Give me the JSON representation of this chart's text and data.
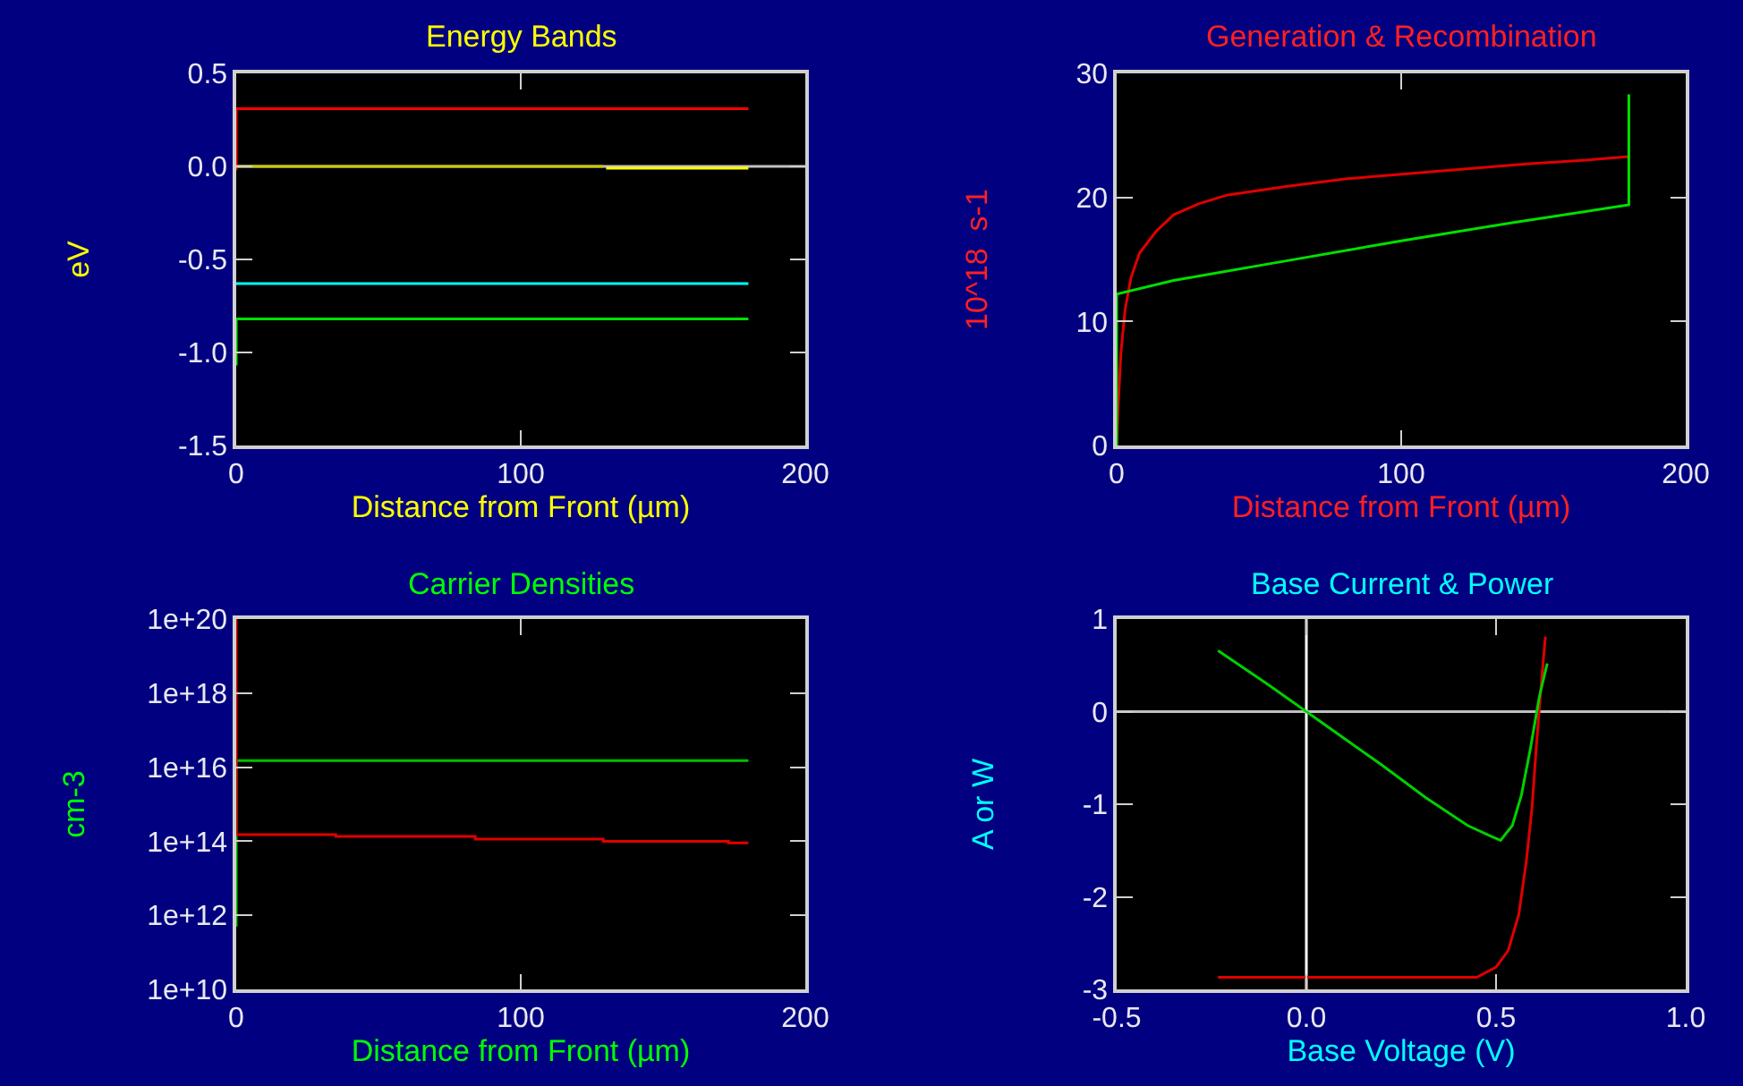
{
  "chart_data": [
    {
      "type": "line",
      "title": "Energy Bands",
      "xlabel": "Distance from Front (µm)",
      "ylabel": "eV",
      "xlim": [
        0,
        200
      ],
      "ylim": [
        -1.5,
        0.5
      ],
      "xticks": [
        0,
        100,
        200
      ],
      "yticks": [
        0.5,
        {
          "value": 0,
          "label": "0.0"
        },
        -0.5,
        {
          "value": -1,
          "label": "-1.0"
        },
        -1.5
      ],
      "grid": false,
      "ref_lines": [
        {
          "axis": "y",
          "value": 0,
          "color": "#c0c0c0"
        }
      ],
      "series": [
        {
          "color": "#ff0000",
          "x": [
            0,
            0,
            180
          ],
          "values": [
            -0.02,
            0.31,
            0.31
          ]
        },
        {
          "color": "#c8c800",
          "x": [
            0,
            129
          ],
          "values": [
            0,
            0
          ]
        },
        {
          "color": "#ffff00",
          "x": [
            130,
            180
          ],
          "values": [
            -0.01,
            -0.01
          ]
        },
        {
          "color": "#00ffff",
          "x": [
            0,
            180
          ],
          "values": [
            -0.63,
            -0.63
          ]
        },
        {
          "color": "#00e000",
          "x": [
            0,
            0,
            180
          ],
          "values": [
            -1.07,
            -0.82,
            -0.82
          ]
        }
      ]
    },
    {
      "type": "line",
      "title": "Generation & Recombination",
      "xlabel": "Distance from Front (µm)",
      "ylabel": "10^18  s-1",
      "xlim": [
        0,
        200
      ],
      "ylim": [
        0,
        30
      ],
      "xticks": [
        0,
        100,
        200
      ],
      "yticks": [
        0,
        10,
        20,
        30
      ],
      "grid": false,
      "series": [
        {
          "color": "#e00000",
          "x": [
            0,
            0.5,
            1.5,
            3,
            5,
            8,
            14,
            20,
            29,
            39,
            60,
            81,
            102,
            123,
            144,
            165,
            180
          ],
          "values": [
            0,
            3,
            7.5,
            11,
            13.5,
            15.5,
            17.3,
            18.6,
            19.5,
            20.2,
            20.9,
            21.5,
            21.9,
            22.3,
            22.7,
            23,
            23.3
          ]
        },
        {
          "color": "#00e000",
          "x": [
            0,
            0,
            20,
            60,
            100,
            140,
            180,
            180
          ],
          "values": [
            0,
            12.2,
            13.3,
            14.9,
            16.5,
            18,
            19.4,
            28.3
          ]
        }
      ]
    },
    {
      "type": "line",
      "title": "Carrier Densities",
      "xlabel": "Distance from Front (µm)",
      "ylabel": "cm-3",
      "log": "y",
      "xlim": [
        0,
        200
      ],
      "ylim": [
        10000000000.0,
        1e+20
      ],
      "xticks": [
        0,
        100,
        200
      ],
      "yticks": [
        {
          "value": 1e+20,
          "label": "1e+20"
        },
        {
          "value": 1e+18,
          "label": "1e+18"
        },
        {
          "value": 1e+16,
          "label": "1e+16"
        },
        {
          "value": 100000000000000.0,
          "label": "1e+14"
        },
        {
          "value": 1000000000000.0,
          "label": "1e+12"
        },
        {
          "value": 10000000000.0,
          "label": "1e+10"
        }
      ],
      "grid": false,
      "series": [
        {
          "color": "#00c000",
          "x": [
            0,
            0,
            180
          ],
          "values": [
            500000000000.0,
            1.5e+16,
            1.5e+16
          ]
        },
        {
          "color": "#e00000",
          "x": [
            0,
            0,
            35,
            35,
            84,
            84,
            129,
            129,
            173,
            173,
            180
          ],
          "values": [
            1e+20,
            150000000000000.0,
            150000000000000.0,
            135000000000000.0,
            135000000000000.0,
            115000000000000.0,
            115000000000000.0,
            100000000000000.0,
            100000000000000.0,
            90000000000000.0,
            90000000000000.0
          ]
        }
      ]
    },
    {
      "type": "line",
      "title": "Base Current & Power",
      "xlabel": "Base Voltage (V)",
      "ylabel": "A or W",
      "xlim": [
        -0.5,
        1.0
      ],
      "ylim": [
        -3,
        1
      ],
      "xticks": [
        -0.5,
        {
          "value": 0,
          "label": "0.0"
        },
        0.5,
        {
          "value": 1,
          "label": "1.0"
        }
      ],
      "yticks": [
        -3,
        -2,
        -1,
        0,
        1
      ],
      "grid": false,
      "ref_lines": [
        {
          "axis": "y",
          "value": 0,
          "color": "#c0c0c0"
        },
        {
          "axis": "x",
          "value": 0,
          "color": "#ffffff"
        }
      ],
      "series": [
        {
          "color": "#e00000",
          "x": [
            -0.233,
            0.449,
            0.5,
            0.532,
            0.56,
            0.58,
            0.595,
            0.606,
            0.617,
            0.63
          ],
          "values": [
            -2.87,
            -2.87,
            -2.76,
            -2.58,
            -2.19,
            -1.61,
            -1.03,
            -0.39,
            0.19,
            0.81
          ]
        },
        {
          "color": "#00d000",
          "x": [
            -0.233,
            -0.1,
            0,
            0.1,
            0.2,
            0.315,
            0.425,
            0.488,
            0.512,
            0.543,
            0.567,
            0.591,
            0.614,
            0.635
          ],
          "values": [
            0.66,
            0.29,
            0,
            -0.29,
            -0.58,
            -0.93,
            -1.23,
            -1.35,
            -1.39,
            -1.23,
            -0.9,
            -0.39,
            0.16,
            0.52
          ]
        }
      ]
    }
  ]
}
